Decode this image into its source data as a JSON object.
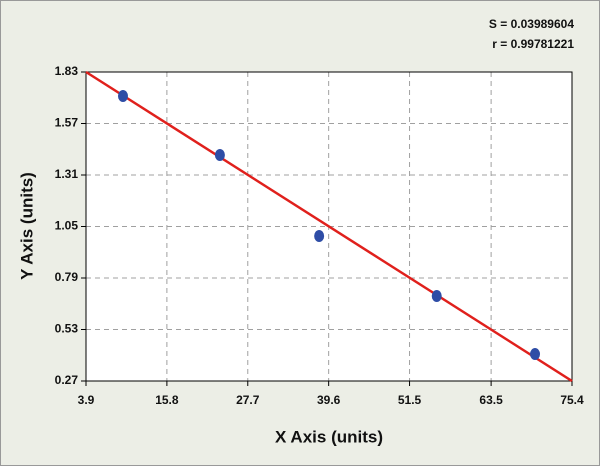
{
  "chart_data": {
    "type": "scatter",
    "annotations": [
      "S = 0.03989604",
      "r = 0.99781221"
    ],
    "xlabel": "X Axis (units)",
    "ylabel": "Y Axis (units)",
    "xlim": [
      3.9,
      75.4
    ],
    "xticks": [
      3.9,
      15.8,
      27.7,
      39.6,
      51.5,
      63.5,
      75.4
    ],
    "ylim": [
      0.27,
      1.83
    ],
    "yticks": [
      0.27,
      0.53,
      0.79,
      1.05,
      1.31,
      1.57,
      1.83
    ],
    "grid": true,
    "series": [
      {
        "color": "#2e4da6",
        "x": [
          9.34,
          23.6,
          38.2,
          55.5,
          69.96
        ],
        "values": [
          1.709,
          1.411,
          1.002,
          0.699,
          0.406
        ]
      }
    ],
    "fit_line": {
      "color": "#e0201c",
      "x": [
        3.9,
        75.4
      ],
      "values": [
        1.83,
        0.27
      ]
    }
  }
}
